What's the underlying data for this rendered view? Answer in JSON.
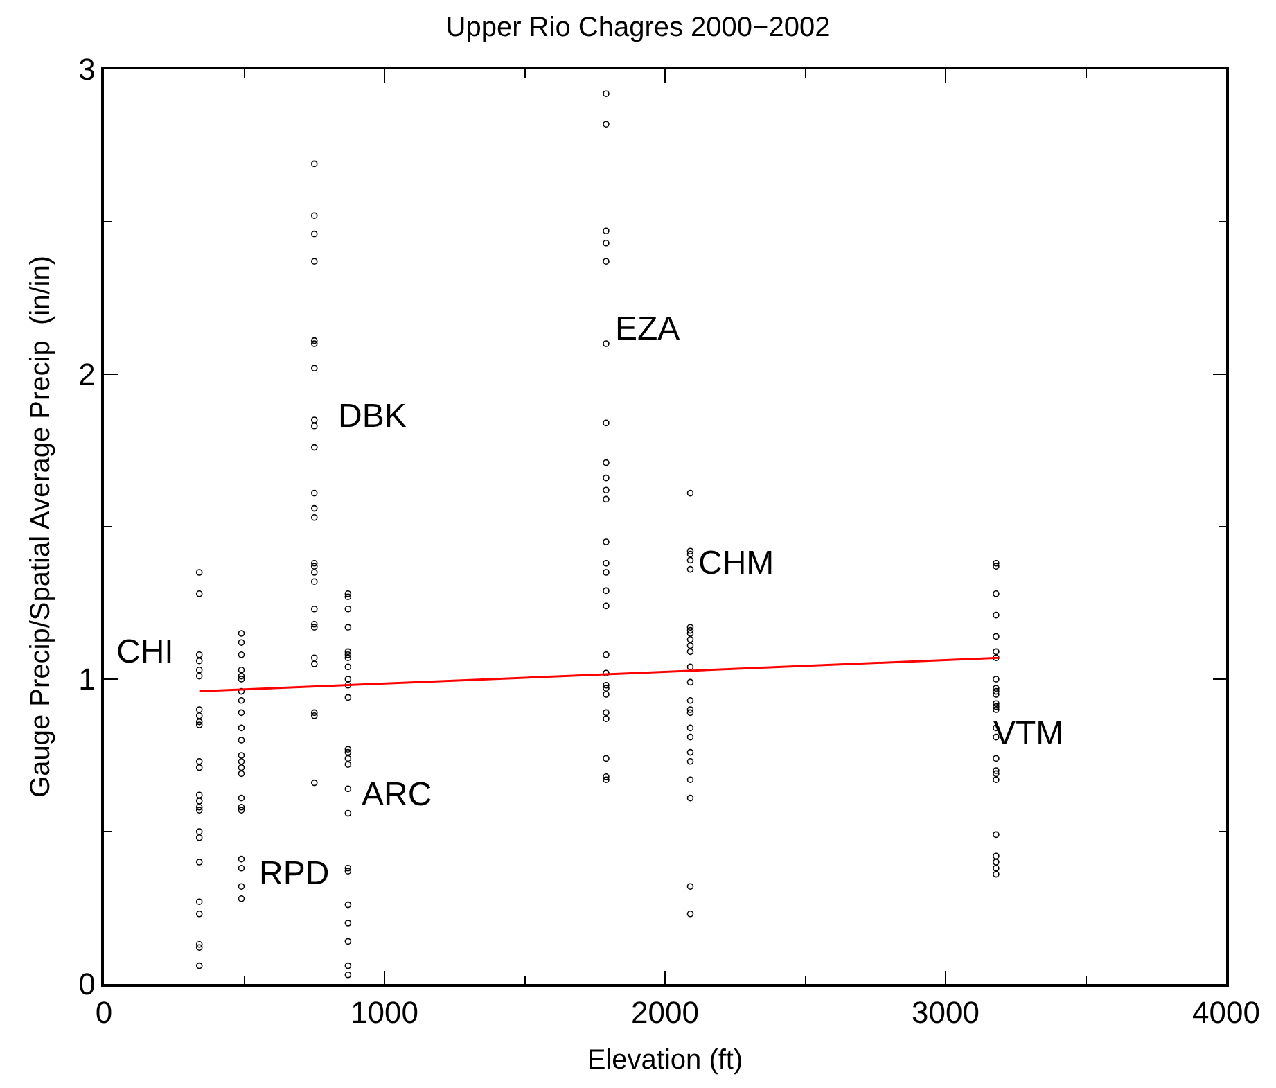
{
  "chart_data": {
    "type": "scatter",
    "title": "Upper Rio Chagres 2000−2002",
    "xlabel": "Elevation (ft)",
    "ylabel": "Gauge Precip/Spatial Average Precip  (in/in)",
    "xlim": [
      0,
      4000
    ],
    "xticks": [
      0,
      1000,
      2000,
      3000,
      4000
    ],
    "ylim": [
      0,
      3
    ],
    "yticks": [
      0,
      1,
      2,
      3
    ],
    "marker": "circle",
    "series": [
      {
        "color": "#000000",
        "x": [
          340,
          340,
          340,
          340,
          340,
          340,
          340,
          340,
          340,
          340,
          340,
          340,
          340,
          340,
          340,
          340,
          340,
          340,
          340,
          340,
          340,
          340,
          340,
          340
        ],
        "values": [
          1.35,
          1.28,
          1.08,
          1.06,
          1.03,
          1.01,
          0.9,
          0.88,
          0.86,
          0.85,
          0.73,
          0.71,
          0.62,
          0.6,
          0.58,
          0.57,
          0.5,
          0.48,
          0.4,
          0.27,
          0.23,
          0.13,
          0.12,
          0.06
        ]
      },
      {
        "color": "#000000",
        "x": [
          490,
          490,
          490,
          490,
          490,
          490,
          490,
          490,
          490,
          490,
          490,
          490,
          490,
          490,
          490,
          490,
          490,
          490,
          490,
          490,
          490,
          490
        ],
        "values": [
          1.15,
          1.12,
          1.08,
          1.03,
          1.01,
          1.0,
          0.96,
          0.93,
          0.89,
          0.84,
          0.8,
          0.75,
          0.73,
          0.71,
          0.69,
          0.61,
          0.58,
          0.57,
          0.41,
          0.38,
          0.32,
          0.28
        ]
      },
      {
        "color": "#000000",
        "x": [
          750,
          750,
          750,
          750,
          750,
          750,
          750,
          750,
          750,
          750,
          750,
          750,
          750,
          750,
          750,
          750,
          750,
          750,
          750,
          750,
          750,
          750,
          750,
          750,
          750
        ],
        "values": [
          2.69,
          2.52,
          2.46,
          2.37,
          2.11,
          2.1,
          2.02,
          1.85,
          1.83,
          1.76,
          1.61,
          1.56,
          1.53,
          1.38,
          1.37,
          1.35,
          1.32,
          1.23,
          1.18,
          1.17,
          1.07,
          1.05,
          0.89,
          0.88,
          0.66
        ]
      },
      {
        "color": "#000000",
        "x": [
          870,
          870,
          870,
          870,
          870,
          870,
          870,
          870,
          870,
          870,
          870,
          870,
          870,
          870,
          870,
          870,
          870,
          870,
          870,
          870,
          870,
          870,
          870,
          870
        ],
        "values": [
          1.28,
          1.27,
          1.23,
          1.17,
          1.09,
          1.08,
          1.07,
          1.04,
          1.0,
          0.98,
          0.94,
          0.77,
          0.76,
          0.74,
          0.72,
          0.64,
          0.56,
          0.38,
          0.37,
          0.26,
          0.2,
          0.14,
          0.06,
          0.03
        ]
      },
      {
        "color": "#000000",
        "x": [
          1790,
          1790,
          1790,
          1790,
          1790,
          1790,
          1790,
          1790,
          1790,
          1790,
          1790,
          1790,
          1790,
          1790,
          1790,
          1790,
          1790,
          1790,
          1790,
          1790,
          1790,
          1790,
          1790,
          1790,
          1790,
          1790
        ],
        "values": [
          2.92,
          2.82,
          2.47,
          2.43,
          2.37,
          2.1,
          1.84,
          1.71,
          1.66,
          1.62,
          1.59,
          1.45,
          1.38,
          1.35,
          1.29,
          1.24,
          1.08,
          1.02,
          0.98,
          0.97,
          0.95,
          0.89,
          0.87,
          0.74,
          0.68,
          0.67
        ]
      },
      {
        "color": "#000000",
        "x": [
          2090,
          2090,
          2090,
          2090,
          2090,
          2090,
          2090,
          2090,
          2090,
          2090,
          2090,
          2090,
          2090,
          2090,
          2090,
          2090,
          2090,
          2090,
          2090,
          2090,
          2090,
          2090,
          2090,
          2090
        ],
        "values": [
          1.61,
          1.42,
          1.41,
          1.39,
          1.36,
          1.17,
          1.16,
          1.15,
          1.13,
          1.11,
          1.09,
          1.04,
          0.99,
          0.93,
          0.9,
          0.89,
          0.84,
          0.81,
          0.76,
          0.73,
          0.67,
          0.61,
          0.32,
          0.23
        ]
      },
      {
        "color": "#000000",
        "x": [
          3180,
          3180,
          3180,
          3180,
          3180,
          3180,
          3180,
          3180,
          3180,
          3180,
          3180,
          3180,
          3180,
          3180,
          3180,
          3180,
          3180,
          3180,
          3180,
          3180,
          3180,
          3180,
          3180,
          3180,
          3180
        ],
        "values": [
          1.38,
          1.37,
          1.28,
          1.21,
          1.14,
          1.09,
          1.07,
          1.0,
          0.97,
          0.96,
          0.95,
          0.92,
          0.91,
          0.9,
          0.84,
          0.81,
          0.74,
          0.7,
          0.69,
          0.67,
          0.49,
          0.42,
          0.4,
          0.38,
          0.36
        ]
      },
      {
        "type": "line",
        "color": "#ff0000",
        "marker": "none",
        "line_style": "solid",
        "x": [
          340,
          3190
        ],
        "values": [
          0.96,
          1.07
        ]
      }
    ],
    "annotations": [
      "CHI",
      "RPD",
      "DBK",
      "ARC",
      "EZA",
      "CHM",
      "VTM"
    ]
  }
}
